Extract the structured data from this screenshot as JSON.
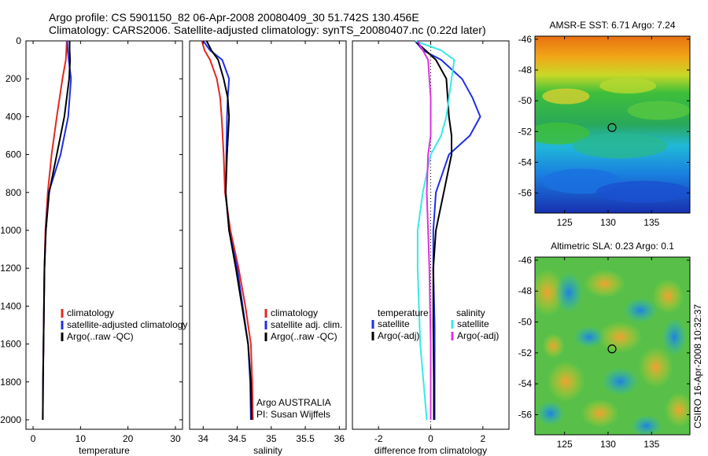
{
  "figure": {
    "title_line1": "Argo profile: CS 5901150_82 06-Apr-2008 20080409_30 51.742S 130.456E",
    "title_line2": "Climatology: CARS2006. Satellite-adjusted climatology: synTS_20080407.nc (0.22d later)",
    "side_label": "CSIRO 16-Apr-2008 10:32:37",
    "colors": {
      "red": "#e8261f",
      "blue": "#1f2ee8",
      "black": "#000000",
      "cyan": "#38e8e8",
      "magenta": "#e030e0"
    }
  },
  "chart_data": [
    {
      "id": "temperature",
      "type": "line",
      "title": "",
      "xlabel": "temperature",
      "ylabel": "",
      "xlim": [
        -1.5,
        31.5
      ],
      "ylim": [
        2050,
        0
      ],
      "xticks": [
        "0",
        "10",
        "20",
        "30"
      ],
      "yticks": [
        "0",
        "200",
        "400",
        "600",
        "800",
        "1000",
        "1200",
        "1400",
        "1600",
        "1800",
        "2000"
      ],
      "legend": [
        "climatology",
        "satellite-adjusted climatology",
        "Argo(..raw -QC)"
      ],
      "legend_position": "lower-right",
      "series": [
        {
          "name": "climatology",
          "color": "#e8261f",
          "x": [
            7.1,
            7.0,
            6.9,
            6.2,
            5.0,
            3.9,
            3.1,
            2.6,
            2.4,
            2.3,
            2.2,
            2.1,
            2.05
          ],
          "y": [
            0,
            50,
            100,
            200,
            400,
            600,
            800,
            1000,
            1200,
            1400,
            1600,
            1800,
            2000
          ]
        },
        {
          "name": "satellite-adjusted climatology",
          "color": "#1f2ee8",
          "x": [
            7.2,
            7.3,
            7.5,
            8.0,
            7.4,
            5.8,
            3.3,
            2.7,
            2.4,
            2.3,
            2.2,
            2.1,
            2.05
          ],
          "y": [
            0,
            50,
            100,
            200,
            400,
            600,
            800,
            1000,
            1200,
            1400,
            1600,
            1800,
            2000
          ]
        },
        {
          "name": "Argo(..raw -QC)",
          "color": "#000000",
          "x": [
            7.7,
            7.7,
            7.8,
            7.6,
            6.6,
            5.0,
            3.4,
            2.7,
            2.4,
            2.3,
            2.2,
            2.1,
            2.05
          ],
          "y": [
            0,
            50,
            100,
            200,
            400,
            600,
            800,
            1000,
            1200,
            1400,
            1600,
            1800,
            2000
          ]
        }
      ]
    },
    {
      "id": "salinity",
      "type": "line",
      "title": "",
      "xlabel": "salinity",
      "ylabel": "",
      "xlim": [
        33.8,
        36.1
      ],
      "ylim": [
        2050,
        0
      ],
      "xticks": [
        "34",
        "34.5",
        "35",
        "35.5",
        "36"
      ],
      "yticks": [],
      "legend": [
        "climatology",
        "satellite adj. clim.",
        "Argo(..raw -QC)"
      ],
      "legend_position": "lower-right",
      "annotations": [
        "Argo AUSTRALIA",
        "PI: Susan Wijffels"
      ],
      "series": [
        {
          "name": "climatology",
          "color": "#e8261f",
          "x": [
            33.98,
            34.02,
            34.1,
            34.2,
            34.25,
            34.27,
            34.3,
            34.32,
            34.4,
            34.52,
            34.62,
            34.7,
            34.72,
            34.73
          ],
          "y": [
            0,
            50,
            100,
            200,
            300,
            400,
            600,
            800,
            1000,
            1200,
            1400,
            1600,
            1800,
            2000
          ]
        },
        {
          "name": "satellite adj. clim.",
          "color": "#1f2ee8",
          "x": [
            34.0,
            34.1,
            34.28,
            34.38,
            34.36,
            34.35,
            34.34,
            34.33,
            34.38,
            34.5,
            34.58,
            34.66,
            34.69,
            34.7
          ],
          "y": [
            0,
            50,
            100,
            200,
            300,
            400,
            600,
            800,
            1000,
            1200,
            1400,
            1600,
            1800,
            2000
          ]
        },
        {
          "name": "Argo(..raw -QC)",
          "color": "#000000",
          "x": [
            34.05,
            34.12,
            34.22,
            34.3,
            34.36,
            34.38,
            34.35,
            34.33,
            34.38,
            34.48,
            34.57,
            34.66,
            34.7,
            34.71
          ],
          "y": [
            0,
            50,
            100,
            200,
            300,
            400,
            600,
            800,
            1000,
            1200,
            1400,
            1600,
            1800,
            2000
          ]
        }
      ]
    },
    {
      "id": "difference",
      "type": "line",
      "title": "",
      "xlabel": "difference from climatology",
      "ylabel": "",
      "xlim": [
        -3,
        3
      ],
      "ylim": [
        2050,
        0
      ],
      "xticks": [
        "-2",
        "0",
        "2"
      ],
      "yticks": [],
      "legend_headers": [
        "temperature",
        "salinity"
      ],
      "legend": [
        "satellite",
        "Argo(-adj)",
        "satellite",
        "Argo(-adj)"
      ],
      "legend_position": "lower-middle",
      "series": [
        {
          "name": "satellite",
          "group": "temperature",
          "color": "#1f2ee8",
          "x": [
            -0.6,
            -0.3,
            0.4,
            1.2,
            1.6,
            1.9,
            1.5,
            0.7,
            0.2,
            0.1,
            0.1,
            0.15,
            0.15,
            0.15
          ],
          "y": [
            0,
            50,
            100,
            200,
            300,
            400,
            500,
            600,
            800,
            1000,
            1200,
            1500,
            1800,
            2000
          ]
        },
        {
          "name": "Argo(-adj)",
          "group": "temperature",
          "color": "#000000",
          "x": [
            -0.6,
            -0.2,
            0.2,
            0.6,
            0.65,
            0.7,
            0.8,
            0.8,
            0.5,
            0.2,
            0.1,
            0.1,
            0.12,
            0.12
          ],
          "y": [
            0,
            50,
            100,
            200,
            300,
            400,
            500,
            600,
            800,
            1000,
            1200,
            1500,
            1800,
            2000
          ]
        },
        {
          "name": "satellite",
          "group": "salinity",
          "color": "#38e8e8",
          "x": [
            -0.6,
            0.4,
            0.9,
            0.8,
            0.7,
            0.6,
            0.4,
            0.0,
            -0.3,
            -0.5,
            -0.5,
            -0.4,
            -0.15
          ],
          "y": [
            0,
            50,
            100,
            200,
            300,
            400,
            500,
            600,
            800,
            1000,
            1200,
            1600,
            2000
          ]
        },
        {
          "name": "Argo(-adj)",
          "group": "salinity",
          "color": "#e030e0",
          "x": [
            -0.5,
            -0.3,
            -0.1,
            -0.05,
            0.0,
            0.0,
            0.0,
            -0.1,
            -0.15,
            -0.1,
            -0.05,
            0.0,
            0.0
          ],
          "y": [
            0,
            50,
            100,
            200,
            300,
            400,
            500,
            600,
            800,
            1000,
            1200,
            1600,
            2000
          ]
        }
      ]
    },
    {
      "id": "sst_map",
      "type": "heatmap",
      "title": "AMSR-E SST: 6.71 Argo: 7.24",
      "xlabel": "",
      "ylabel": "",
      "xlim": [
        121.6,
        139.4
      ],
      "ylim": [
        -57.3,
        -45.8
      ],
      "xticks": [
        "125",
        "130",
        "135"
      ],
      "yticks": [
        "-46",
        "-48",
        "-50",
        "-52",
        "-54",
        "-56"
      ],
      "marker": {
        "lon": 130.456,
        "lat": -51.742
      }
    },
    {
      "id": "sla_map",
      "type": "heatmap",
      "title": "Altimetric SLA: 0.23 Argo: 0.1",
      "xlabel": "",
      "ylabel": "",
      "xlim": [
        121.6,
        139.4
      ],
      "ylim": [
        -57.3,
        -45.8
      ],
      "xticks": [
        "125",
        "130",
        "135"
      ],
      "yticks": [
        "-46",
        "-48",
        "-50",
        "-52",
        "-54",
        "-56"
      ],
      "marker": {
        "lon": 130.456,
        "lat": -51.742
      }
    }
  ]
}
